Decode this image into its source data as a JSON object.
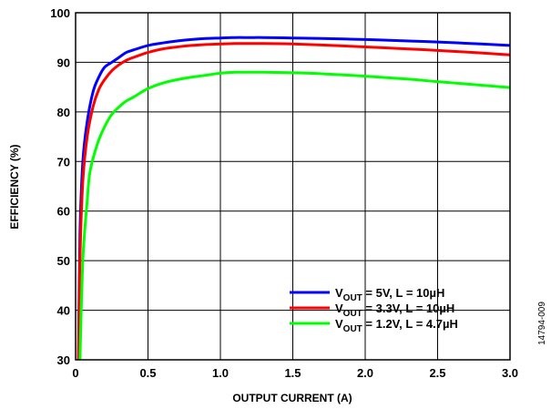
{
  "chart_data": {
    "type": "line",
    "xlabel": "OUTPUT CURRENT (A)",
    "ylabel": "EFFICIENCY (%)",
    "xlim": [
      0,
      3.0
    ],
    "ylim": [
      30,
      100
    ],
    "xticks": [
      "0",
      "0.5",
      "1.0",
      "1.5",
      "2.0",
      "2.5",
      "3.0"
    ],
    "yticks": [
      "30",
      "40",
      "50",
      "60",
      "70",
      "80",
      "90",
      "100"
    ],
    "grid": true,
    "legend_position": "bottom-right",
    "figure_id": "14794-009",
    "series": [
      {
        "name": "V_OUT = 5V, L = 10µH",
        "legend": {
          "v": "V",
          "sub": "OUT",
          "rest": " = 5V, L = 10µH"
        },
        "color": "#0000ff",
        "x": [
          0.02,
          0.03,
          0.05,
          0.08,
          0.12,
          0.16,
          0.2,
          0.25,
          0.3,
          0.35,
          0.4,
          0.5,
          0.6,
          0.7,
          0.8,
          0.9,
          1.0,
          1.1,
          1.2,
          1.3,
          1.5,
          1.7,
          2.0,
          2.3,
          2.5,
          2.8,
          3.0
        ],
        "y": [
          30,
          55,
          70,
          78,
          84,
          87,
          89,
          90,
          91,
          92,
          92.5,
          93.4,
          93.9,
          94.3,
          94.6,
          94.8,
          94.9,
          95.0,
          95.0,
          95.0,
          94.9,
          94.8,
          94.6,
          94.3,
          94.1,
          93.7,
          93.4
        ]
      },
      {
        "name": "V_OUT = 3.3V, L = 10µH",
        "legend": {
          "v": "V",
          "sub": "OUT",
          "rest": " = 3.3V, L = 10µH"
        },
        "color": "#ff0000",
        "x": [
          0.02,
          0.03,
          0.05,
          0.08,
          0.12,
          0.16,
          0.2,
          0.25,
          0.3,
          0.35,
          0.4,
          0.5,
          0.6,
          0.7,
          0.8,
          0.9,
          1.0,
          1.1,
          1.2,
          1.3,
          1.5,
          1.7,
          2.0,
          2.3,
          2.5,
          2.8,
          3.0
        ],
        "y": [
          30,
          50,
          66,
          75,
          81,
          84.5,
          86.5,
          88.3,
          89.5,
          90.4,
          91.0,
          92.0,
          92.7,
          93.1,
          93.4,
          93.6,
          93.7,
          93.8,
          93.8,
          93.8,
          93.7,
          93.5,
          93.1,
          92.7,
          92.4,
          91.9,
          91.5
        ]
      },
      {
        "name": "V_OUT = 1.2V, L = 4.7µH",
        "legend": {
          "v": "V",
          "sub": "OUT",
          "rest": " = 1.2V, L = 4.7µH"
        },
        "color": "#00ff00",
        "x": [
          0.03,
          0.05,
          0.08,
          0.1,
          0.15,
          0.2,
          0.25,
          0.3,
          0.35,
          0.4,
          0.5,
          0.6,
          0.7,
          0.8,
          0.9,
          1.0,
          1.1,
          1.2,
          1.3,
          1.5,
          1.7,
          2.0,
          2.3,
          2.5,
          2.8,
          3.0
        ],
        "y": [
          30,
          50,
          62,
          68,
          73.5,
          77,
          79.5,
          81,
          82.2,
          83.0,
          84.7,
          85.8,
          86.5,
          87.0,
          87.4,
          87.8,
          88.0,
          88.0,
          88.0,
          87.9,
          87.7,
          87.2,
          86.6,
          86.1,
          85.4,
          84.9
        ]
      }
    ]
  }
}
